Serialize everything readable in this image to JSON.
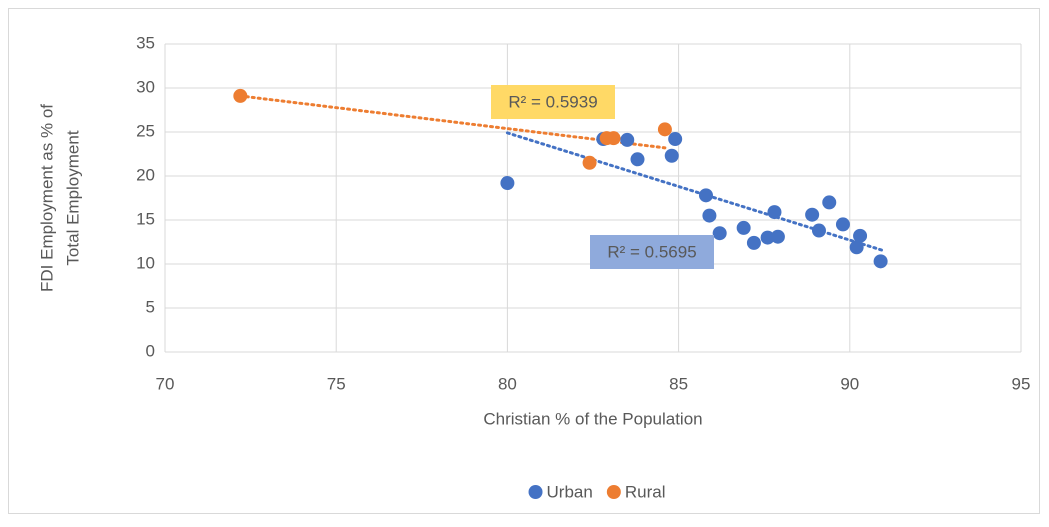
{
  "chart_data": {
    "type": "scatter",
    "xlabel": "Christian % of the Population",
    "ylabel": [
      "FDI Employment as % of",
      "Total Employment"
    ],
    "xlim": [
      70,
      95
    ],
    "xticks": [
      70,
      75,
      80,
      85,
      90,
      95
    ],
    "ylim": [
      0,
      35
    ],
    "yticks": [
      0,
      5,
      10,
      15,
      20,
      25,
      30,
      35
    ],
    "grid": true,
    "legend": "bottom",
    "series": [
      {
        "name": "Urban",
        "color": "#4472c4",
        "label_color": "#8faadc",
        "x": [
          80.0,
          82.8,
          83.5,
          83.8,
          84.9,
          84.8,
          85.8,
          85.9,
          86.2,
          86.9,
          87.2,
          87.6,
          87.9,
          87.8,
          88.9,
          89.4,
          89.1,
          89.8,
          90.3,
          90.2,
          90.9
        ],
        "values": [
          19.2,
          24.2,
          24.1,
          21.9,
          24.2,
          22.3,
          17.8,
          15.5,
          13.5,
          14.1,
          12.4,
          13.0,
          13.1,
          15.9,
          15.6,
          17.0,
          13.8,
          14.5,
          13.2,
          11.9,
          10.3
        ],
        "trendline": {
          "x": [
            80.0,
            91.0
          ],
          "values": [
            24.9,
            11.5
          ]
        },
        "r2_label": "R² = 0.5695"
      },
      {
        "name": "Rural",
        "color": "#ed7d31",
        "label_color": "#ffd966",
        "x": [
          72.2,
          82.4,
          82.9,
          83.1,
          84.6
        ],
        "values": [
          29.1,
          21.5,
          24.3,
          24.3,
          25.3
        ],
        "trendline": {
          "x": [
            72.2,
            84.6
          ],
          "values": [
            29.1,
            23.2
          ]
        },
        "r2_label": "R² = 0.5939"
      }
    ]
  }
}
